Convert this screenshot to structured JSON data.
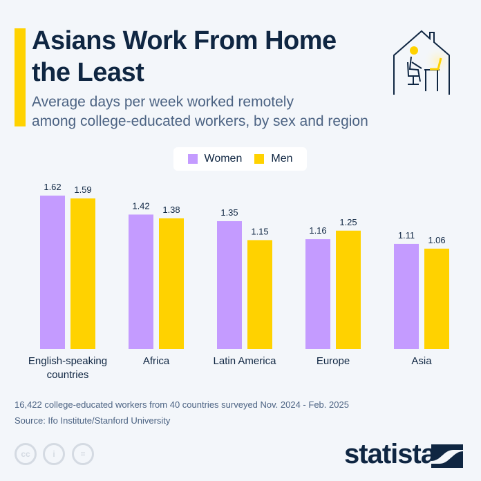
{
  "header": {
    "title_line1": "Asians Work From Home",
    "title_line2": "the Least",
    "subtitle_line1": "Average days per week worked remotely",
    "subtitle_line2": "among college-educated workers, by sex and region"
  },
  "chart_data": {
    "type": "bar",
    "categories": [
      [
        "English-speaking",
        "countries"
      ],
      [
        "Africa"
      ],
      [
        "Latin America"
      ],
      [
        "Europe"
      ],
      [
        "Asia"
      ]
    ],
    "series": [
      {
        "name": "Women",
        "color": "#c49bff",
        "values": [
          1.62,
          1.42,
          1.35,
          1.16,
          1.11
        ]
      },
      {
        "name": "Men",
        "color": "#ffd200",
        "values": [
          1.59,
          1.38,
          1.15,
          1.25,
          1.06
        ]
      }
    ],
    "ylim": [
      0,
      1.7
    ],
    "grid": false,
    "legend": "top-center"
  },
  "footer": {
    "note": "16,422 college-educated workers from 40 countries surveyed Nov. 2024 - Feb. 2025",
    "source": "Source: Ifo Institute/Stanford University",
    "logo": "statista",
    "license_icons": [
      "cc",
      "by",
      "nd"
    ]
  }
}
